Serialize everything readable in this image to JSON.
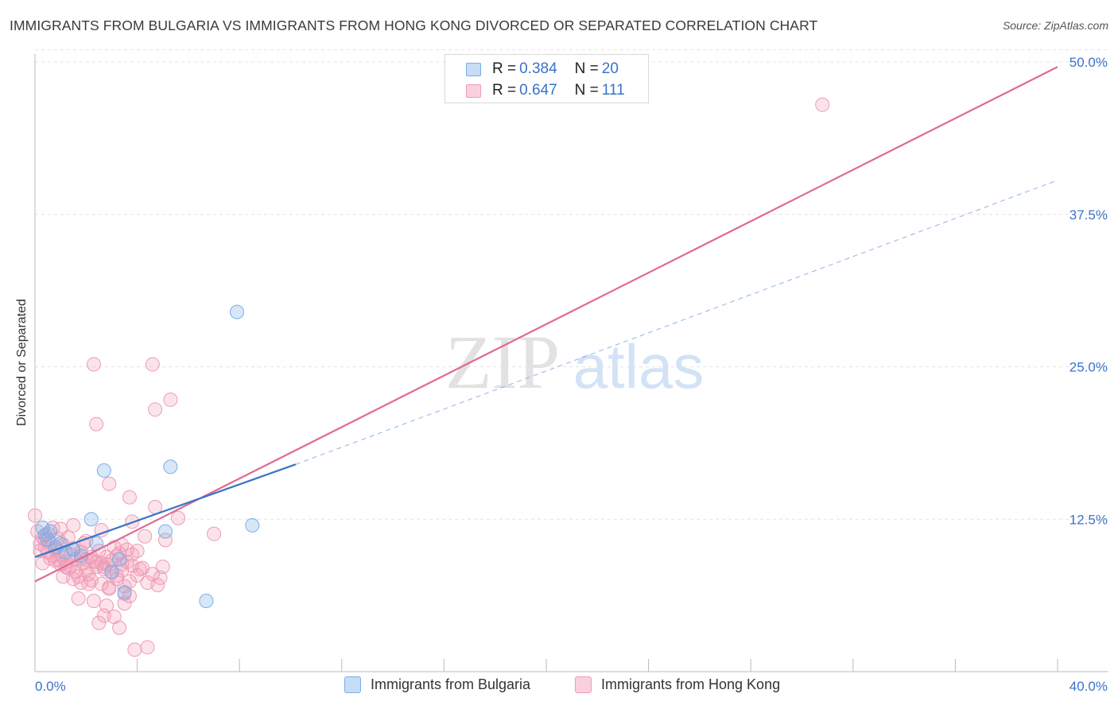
{
  "title": "IMMIGRANTS FROM BULGARIA VS IMMIGRANTS FROM HONG KONG DIVORCED OR SEPARATED CORRELATION CHART",
  "source": "Source: ZipAtlas.com",
  "watermark": {
    "zip": "ZIP",
    "atlas": "atlas"
  },
  "colors": {
    "blue": "#7aaee8",
    "blue_line": "#3a73c8",
    "pink": "#f09ab5",
    "pink_line": "#e06a94",
    "axis_text": "#3a73c8"
  },
  "stats": {
    "r_label": "R =",
    "n_label": "N =",
    "rows": [
      {
        "r": "0.384",
        "n": "20"
      },
      {
        "r": "0.647",
        "n": "111"
      }
    ]
  },
  "legend": {
    "items": [
      {
        "label": "Immigrants from Bulgaria"
      },
      {
        "label": "Immigrants from Hong Kong"
      }
    ]
  },
  "chart_data": {
    "type": "scatter",
    "title": "IMMIGRANTS FROM BULGARIA VS IMMIGRANTS FROM HONG KONG DIVORCED OR SEPARATED CORRELATION CHART",
    "xlabel": "",
    "ylabel": "Divorced or Separated",
    "xlim": [
      0,
      40
    ],
    "ylim": [
      0,
      50
    ],
    "x_tick_labels": [
      "0.0%",
      "40.0%"
    ],
    "y_ticks": [
      12.5,
      25.0,
      37.5,
      50.0
    ],
    "y_tick_labels": [
      "12.5%",
      "25.0%",
      "37.5%",
      "50.0%"
    ],
    "series": [
      {
        "name": "Immigrants from Bulgaria",
        "color": "#7aaee8",
        "points": [
          [
            0.3,
            11.8
          ],
          [
            0.4,
            11.2
          ],
          [
            0.5,
            10.8
          ],
          [
            0.6,
            11.5
          ],
          [
            0.8,
            10.2
          ],
          [
            1.0,
            10.5
          ],
          [
            1.2,
            9.8
          ],
          [
            1.5,
            10.0
          ],
          [
            1.8,
            9.5
          ],
          [
            2.2,
            12.5
          ],
          [
            2.4,
            10.5
          ],
          [
            2.7,
            16.5
          ],
          [
            3.0,
            8.2
          ],
          [
            3.3,
            9.2
          ],
          [
            3.5,
            6.5
          ],
          [
            5.1,
            11.5
          ],
          [
            5.3,
            16.8
          ],
          [
            6.7,
            5.8
          ],
          [
            7.9,
            29.5
          ],
          [
            8.5,
            12.0
          ]
        ],
        "trend": {
          "x0": 0,
          "y0": 9.4,
          "x1": 10.2,
          "y1": 17.0,
          "dashed_to_x": 40,
          "dashed_to_y": 40.3
        }
      },
      {
        "name": "Immigrants from Hong Kong",
        "color": "#f09ab5",
        "points": [
          [
            0.0,
            12.8
          ],
          [
            0.1,
            11.5
          ],
          [
            0.2,
            10.5
          ],
          [
            0.3,
            11.0
          ],
          [
            0.4,
            10.2
          ],
          [
            0.5,
            9.8
          ],
          [
            0.6,
            10.6
          ],
          [
            0.7,
            9.5
          ],
          [
            0.8,
            10.0
          ],
          [
            0.9,
            9.2
          ],
          [
            1.0,
            8.8
          ],
          [
            1.1,
            10.4
          ],
          [
            1.2,
            9.0
          ],
          [
            1.3,
            8.5
          ],
          [
            1.4,
            9.6
          ],
          [
            1.5,
            10.1
          ],
          [
            1.6,
            8.2
          ],
          [
            1.7,
            7.8
          ],
          [
            1.8,
            9.3
          ],
          [
            1.9,
            8.9
          ],
          [
            2.0,
            10.7
          ],
          [
            2.1,
            8.0
          ],
          [
            2.2,
            7.5
          ],
          [
            2.3,
            9.1
          ],
          [
            2.4,
            8.6
          ],
          [
            2.5,
            9.9
          ],
          [
            2.6,
            7.2
          ],
          [
            2.7,
            8.4
          ],
          [
            2.8,
            9.4
          ],
          [
            2.9,
            6.8
          ],
          [
            3.0,
            8.1
          ],
          [
            3.1,
            10.2
          ],
          [
            3.2,
            7.6
          ],
          [
            3.3,
            9.7
          ],
          [
            3.4,
            8.3
          ],
          [
            3.5,
            7.0
          ],
          [
            3.6,
            9.0
          ],
          [
            3.7,
            6.2
          ],
          [
            3.8,
            8.7
          ],
          [
            4.0,
            7.9
          ],
          [
            4.2,
            8.5
          ],
          [
            4.4,
            7.3
          ],
          [
            4.6,
            8.0
          ],
          [
            4.8,
            7.1
          ],
          [
            5.0,
            8.6
          ],
          [
            0.5,
            11.3
          ],
          [
            0.9,
            10.9
          ],
          [
            1.3,
            11.0
          ],
          [
            1.6,
            9.2
          ],
          [
            2.0,
            8.3
          ],
          [
            2.4,
            9.0
          ],
          [
            2.8,
            8.8
          ],
          [
            3.2,
            9.5
          ],
          [
            3.6,
            10.0
          ],
          [
            0.2,
            9.9
          ],
          [
            0.6,
            9.3
          ],
          [
            1.0,
            9.6
          ],
          [
            1.4,
            8.7
          ],
          [
            1.8,
            9.8
          ],
          [
            2.2,
            9.4
          ],
          [
            2.6,
            8.9
          ],
          [
            3.0,
            9.1
          ],
          [
            3.4,
            8.8
          ],
          [
            3.8,
            9.6
          ],
          [
            1.1,
            7.8
          ],
          [
            1.7,
            6.0
          ],
          [
            2.5,
            4.0
          ],
          [
            2.7,
            4.6
          ],
          [
            2.8,
            5.4
          ],
          [
            3.1,
            4.5
          ],
          [
            3.3,
            3.6
          ],
          [
            3.5,
            5.6
          ],
          [
            3.9,
            1.8
          ],
          [
            4.4,
            2.0
          ],
          [
            2.3,
            5.8
          ],
          [
            2.9,
            6.9
          ],
          [
            3.7,
            7.4
          ],
          [
            4.1,
            8.4
          ],
          [
            2.3,
            25.2
          ],
          [
            4.6,
            25.2
          ],
          [
            4.7,
            21.5
          ],
          [
            5.3,
            22.3
          ],
          [
            2.4,
            20.3
          ],
          [
            2.9,
            15.4
          ],
          [
            3.7,
            14.3
          ],
          [
            4.7,
            13.5
          ],
          [
            5.6,
            12.6
          ],
          [
            3.8,
            12.3
          ],
          [
            7.0,
            11.3
          ],
          [
            5.1,
            10.8
          ],
          [
            4.3,
            11.1
          ],
          [
            2.6,
            11.6
          ],
          [
            1.5,
            12.0
          ],
          [
            3.4,
            10.4
          ],
          [
            4.0,
            9.9
          ],
          [
            1.9,
            10.5
          ],
          [
            0.8,
            9.1
          ],
          [
            1.2,
            8.6
          ],
          [
            2.0,
            9.2
          ],
          [
            2.7,
            8.6
          ],
          [
            3.2,
            7.9
          ],
          [
            0.4,
            10.8
          ],
          [
            0.7,
            11.8
          ],
          [
            1.5,
            7.6
          ],
          [
            2.1,
            7.2
          ],
          [
            3.5,
            6.4
          ],
          [
            4.9,
            7.7
          ],
          [
            30.8,
            46.5
          ],
          [
            0.3,
            8.9
          ],
          [
            1.0,
            11.7
          ],
          [
            1.8,
            7.3
          ]
        ],
        "trend": {
          "x0": 0,
          "y0": 7.4,
          "x1": 40,
          "y1": 49.6
        }
      }
    ]
  }
}
